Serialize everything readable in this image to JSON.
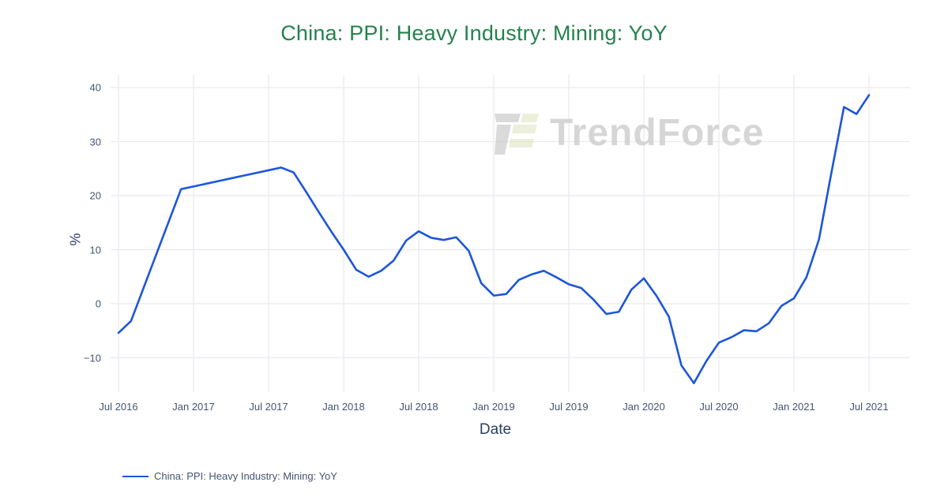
{
  "watermark": {
    "text": "TrendForce"
  },
  "legend": {
    "label": "China: PPI: Heavy Industry: Mining: YoY",
    "position": "bottom-left"
  },
  "colors": {
    "title_green": "#24824e",
    "line_blue": "#1c56db",
    "grid": "#ebebf0",
    "tick_text": "#44546f",
    "axis_title_text": "#2a3f5f",
    "watermark_text_gray": "#c9c9c9",
    "watermark_logo_gray": "#bdbdbd",
    "watermark_logo_olive": "#dde3bd",
    "background": "#ffffff"
  },
  "chart_data": {
    "type": "line",
    "title": "China: PPI: Heavy Industry: Mining: YoY",
    "xlabel": "Date",
    "ylabel": "%",
    "grid": true,
    "legend_position": "bottom-left",
    "ylim": [
      -16.8,
      42.3
    ],
    "y_ticks": [
      {
        "label": "−10",
        "value": -10
      },
      {
        "label": "0",
        "value": 0
      },
      {
        "label": "10",
        "value": 10
      },
      {
        "label": "20",
        "value": 20
      },
      {
        "label": "30",
        "value": 30
      },
      {
        "label": "40",
        "value": 40
      }
    ],
    "x_ticks": [
      {
        "label": "Jul 2016",
        "month_index": 0
      },
      {
        "label": "Jan 2017",
        "month_index": 6
      },
      {
        "label": "Jul 2017",
        "month_index": 12
      },
      {
        "label": "Jan 2018",
        "month_index": 18
      },
      {
        "label": "Jul 2018",
        "month_index": 24
      },
      {
        "label": "Jan 2019",
        "month_index": 30
      },
      {
        "label": "Jul 2019",
        "month_index": 36
      },
      {
        "label": "Jan 2020",
        "month_index": 42
      },
      {
        "label": "Jul 2020",
        "month_index": 48
      },
      {
        "label": "Jan 2021",
        "month_index": 54
      },
      {
        "label": "Jul 2021",
        "month_index": 60
      }
    ],
    "series": [
      {
        "name": "China: PPI: Heavy Industry: Mining: YoY",
        "color": "#1c56db",
        "x": [
          "2016-07",
          "2016-08",
          "2016-09",
          "2016-10",
          "2016-11",
          "2016-12",
          "2017-01",
          "2017-02",
          "2017-03",
          "2017-04",
          "2017-05",
          "2017-06",
          "2017-07",
          "2017-08",
          "2017-09",
          "2017-10",
          "2017-11",
          "2017-12",
          "2018-01",
          "2018-02",
          "2018-03",
          "2018-04",
          "2018-05",
          "2018-06",
          "2018-07",
          "2018-08",
          "2018-09",
          "2018-10",
          "2018-11",
          "2018-12",
          "2019-01",
          "2019-02",
          "2019-03",
          "2019-04",
          "2019-05",
          "2019-06",
          "2019-07",
          "2019-08",
          "2019-09",
          "2019-10",
          "2019-11",
          "2019-12",
          "2020-01",
          "2020-02",
          "2020-03",
          "2020-04",
          "2020-05",
          "2020-06",
          "2020-07",
          "2020-08",
          "2020-09",
          "2020-10",
          "2020-11",
          "2020-12",
          "2021-01",
          "2021-02",
          "2021-03",
          "2021-04",
          "2021-05",
          "2021-06",
          "2021-07"
        ],
        "values": [
          -5.4,
          -3.2,
          2.9,
          9.0,
          15.1,
          21.2,
          21.7,
          22.2,
          22.7,
          23.2,
          23.7,
          24.2,
          24.7,
          25.2,
          24.3,
          20.7,
          17.0,
          13.4,
          10.0,
          6.3,
          5.0,
          6.1,
          8.0,
          11.7,
          13.4,
          12.2,
          11.8,
          12.3,
          9.8,
          3.8,
          1.5,
          1.8,
          4.4,
          5.4,
          6.1,
          4.9,
          3.6,
          2.9,
          0.7,
          -1.9,
          -1.5,
          2.6,
          4.7,
          1.5,
          -2.4,
          -11.4,
          -14.7,
          -10.6,
          -7.2,
          -6.2,
          -4.9,
          -5.1,
          -3.6,
          -0.4,
          1.0,
          4.9,
          11.9,
          24.3,
          36.4,
          35.1,
          38.6
        ]
      }
    ]
  }
}
